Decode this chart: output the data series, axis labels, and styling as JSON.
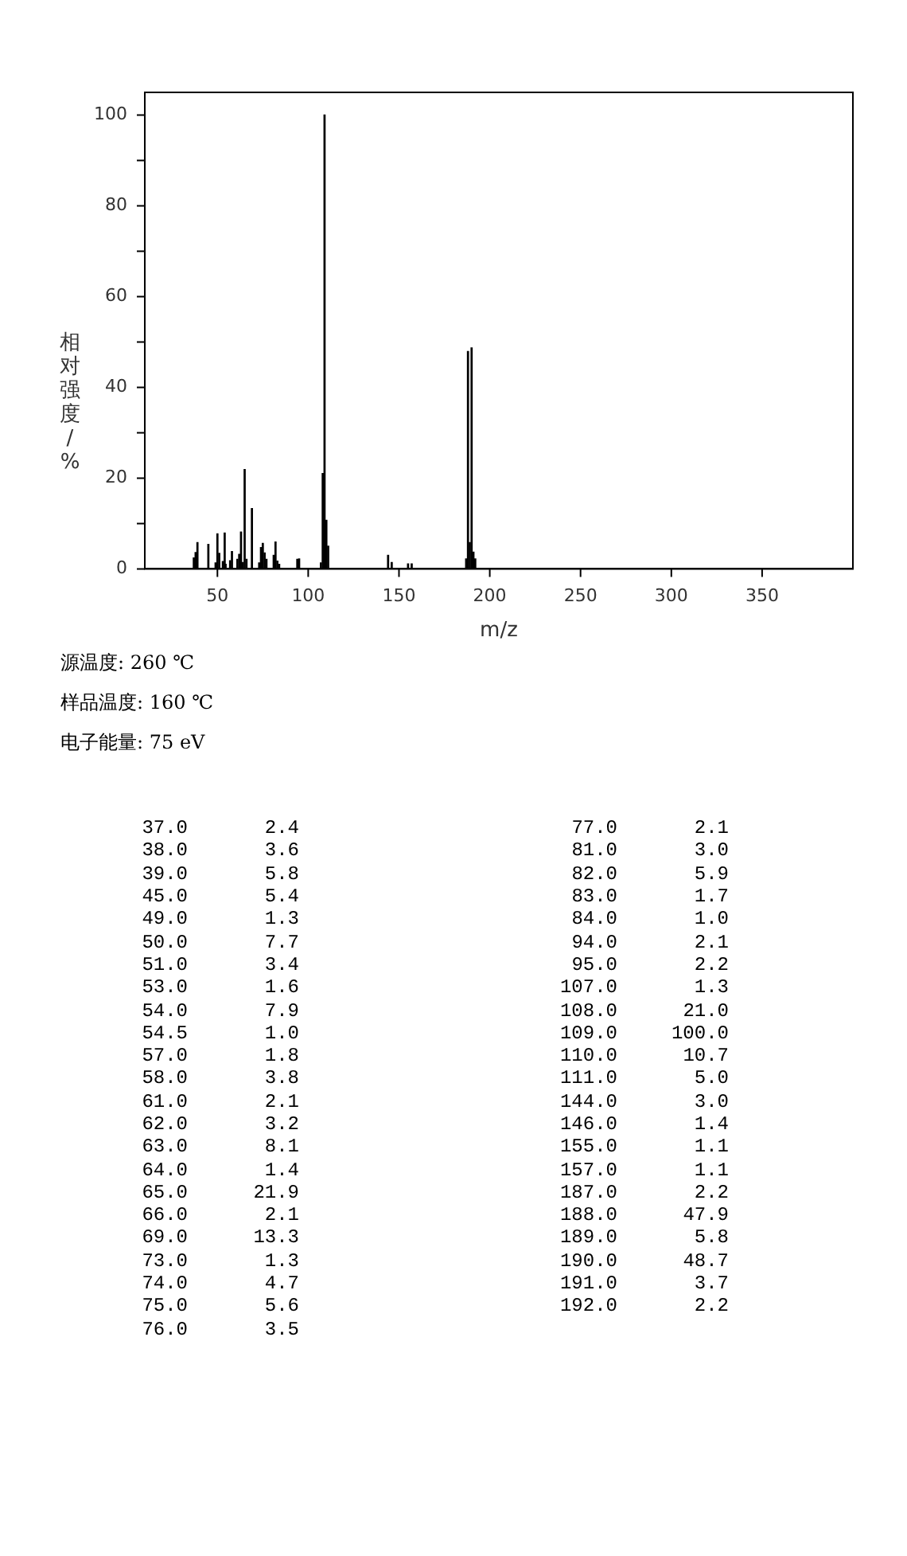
{
  "chart_data": [
    {
      "type": "bar",
      "xlabel": "m/z",
      "ylabel": "相对强度/%",
      "x": [
        37,
        38,
        39,
        45,
        49,
        50,
        51,
        53,
        54,
        54.5,
        57,
        58,
        61,
        62,
        63,
        64,
        65,
        66,
        69,
        73,
        74,
        75,
        76,
        77,
        81,
        82,
        83,
        84,
        94,
        95,
        107,
        108,
        109,
        110,
        111,
        144,
        146,
        155,
        157,
        187,
        188,
        189,
        190,
        191,
        192
      ],
      "values": [
        2.4,
        3.6,
        5.8,
        5.4,
        1.3,
        7.7,
        3.4,
        1.6,
        7.9,
        1.0,
        1.8,
        3.8,
        2.1,
        3.2,
        8.1,
        1.4,
        21.9,
        2.1,
        13.3,
        1.3,
        4.7,
        5.6,
        3.5,
        2.1,
        3.0,
        5.9,
        1.7,
        1.0,
        2.1,
        2.2,
        1.3,
        21.0,
        100.0,
        10.7,
        5.0,
        3.0,
        1.4,
        1.1,
        1.1,
        2.2,
        47.9,
        5.8,
        48.7,
        3.7,
        2.2
      ],
      "color": "#000000",
      "xlim": [
        10,
        400
      ],
      "xticks": [
        50,
        100,
        150,
        200,
        250,
        300,
        350
      ],
      "ylim": [
        0,
        105
      ],
      "yticks": [
        0,
        {
          "value": 10,
          "label": null
        },
        20,
        {
          "value": 30,
          "label": null
        },
        40,
        {
          "value": 50,
          "label": null
        },
        60,
        {
          "value": 70,
          "label": null
        },
        80,
        {
          "value": 90,
          "label": null
        },
        100
      ],
      "grid": false,
      "legend": false,
      "annotations": [
        "源温度: 260 ℃",
        "样品温度: 160 ℃",
        "电子能量: 75 eV"
      ]
    },
    {
      "type": "other",
      "categories": [
        "37.0",
        "38.0",
        "39.0",
        "45.0",
        "49.0",
        "50.0",
        "51.0",
        "53.0",
        "54.0",
        "54.5",
        "57.0",
        "58.0",
        "61.0",
        "62.0",
        "63.0",
        "64.0",
        "65.0",
        "66.0",
        "69.0",
        "73.0",
        "74.0",
        "75.0",
        "76.0",
        "77.0",
        "81.0",
        "82.0",
        "83.0",
        "84.0",
        "94.0",
        "95.0",
        "107.0",
        "108.0",
        "109.0",
        "110.0",
        "111.0",
        "144.0",
        "146.0",
        "155.0",
        "157.0",
        "187.0",
        "188.0",
        "189.0",
        "190.0",
        "191.0",
        "192.0"
      ],
      "value_labels": [
        "2.4",
        "3.6",
        "5.8",
        "5.4",
        "1.3",
        "7.7",
        "3.4",
        "1.6",
        "7.9",
        "1.0",
        "1.8",
        "3.8",
        "2.1",
        "3.2",
        "8.1",
        "1.4",
        "21.9",
        "2.1",
        "13.3",
        "1.3",
        "4.7",
        "5.6",
        "3.5",
        "2.1",
        "3.0",
        "5.9",
        "1.7",
        "1.0",
        "2.1",
        "2.2",
        "1.3",
        "21.0",
        "100.0",
        "10.7",
        "5.0",
        "3.0",
        "1.4",
        "1.1",
        "1.1",
        "2.2",
        "47.9",
        "5.8",
        "48.7",
        "3.7",
        "2.2"
      ],
      "values": [
        2.4,
        3.6,
        5.8,
        5.4,
        1.3,
        7.7,
        3.4,
        1.6,
        7.9,
        1.0,
        1.8,
        3.8,
        2.1,
        3.2,
        8.1,
        1.4,
        21.9,
        2.1,
        13.3,
        1.3,
        4.7,
        5.6,
        3.5,
        2.1,
        3.0,
        5.9,
        1.7,
        1.0,
        2.1,
        2.2,
        1.3,
        21.0,
        100.0,
        10.7,
        5.0,
        3.0,
        1.4,
        1.1,
        1.1,
        2.2,
        47.9,
        5.8,
        48.7,
        3.7,
        2.2
      ]
    }
  ]
}
